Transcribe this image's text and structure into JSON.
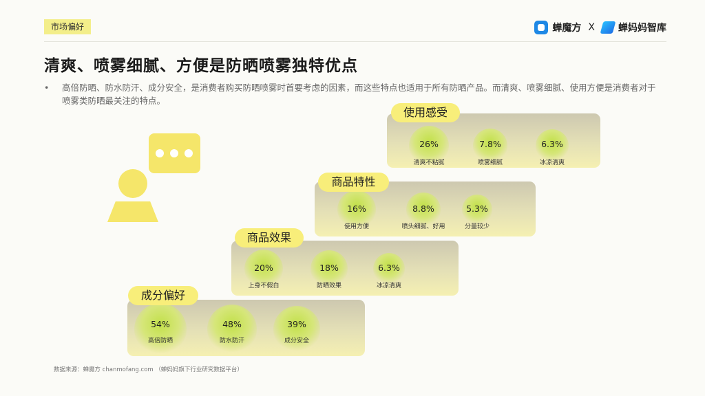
{
  "header": {
    "tag": "市场偏好",
    "brand_left": "蝉魔方",
    "brand_sep": "X",
    "brand_right": "蝉妈妈智库"
  },
  "title": "清爽、喷雾细腻、方便是防晒喷雾独特优点",
  "description": {
    "bullet": "•",
    "text": "高倍防晒、防水防汗、成分安全，是消费者购买防晒喷雾时首要考虑的因素，而这些特点也适用于所有防晒产品。而清爽、喷雾细腻、使用方便是消费者对于喷雾类防晒最关注的特点。"
  },
  "cards": [
    {
      "title": "使用感受",
      "items": [
        {
          "value": "26%",
          "label": "清爽不粘腻"
        },
        {
          "value": "7.8%",
          "label": "喷雾细腻"
        },
        {
          "value": "6.3%",
          "label": "冰凉清爽"
        }
      ]
    },
    {
      "title": "商品特性",
      "items": [
        {
          "value": "16%",
          "label": "使用方便"
        },
        {
          "value": "8.8%",
          "label": "喷头细腻、好用"
        },
        {
          "value": "5.3%",
          "label": "分量较少"
        }
      ]
    },
    {
      "title": "商品效果",
      "items": [
        {
          "value": "20%",
          "label": "上身不假白"
        },
        {
          "value": "18%",
          "label": "防晒效果"
        },
        {
          "value": "6.3%",
          "label": "冰凉清爽"
        }
      ]
    },
    {
      "title": "成分偏好",
      "items": [
        {
          "value": "54%",
          "label": "高倍防晒"
        },
        {
          "value": "48%",
          "label": "防水防汗"
        },
        {
          "value": "39%",
          "label": "成分安全"
        }
      ]
    }
  ],
  "source": "数据来源：蝉魔方 chanmofang.com （蝉妈妈旗下行业研究数据平台）",
  "colors": {
    "accent_yellow": "#f8ee7a",
    "circle_green": "#c2e04a",
    "card_gradient_top": "#cdc8b0",
    "card_gradient_bottom": "#f5f0b2"
  }
}
